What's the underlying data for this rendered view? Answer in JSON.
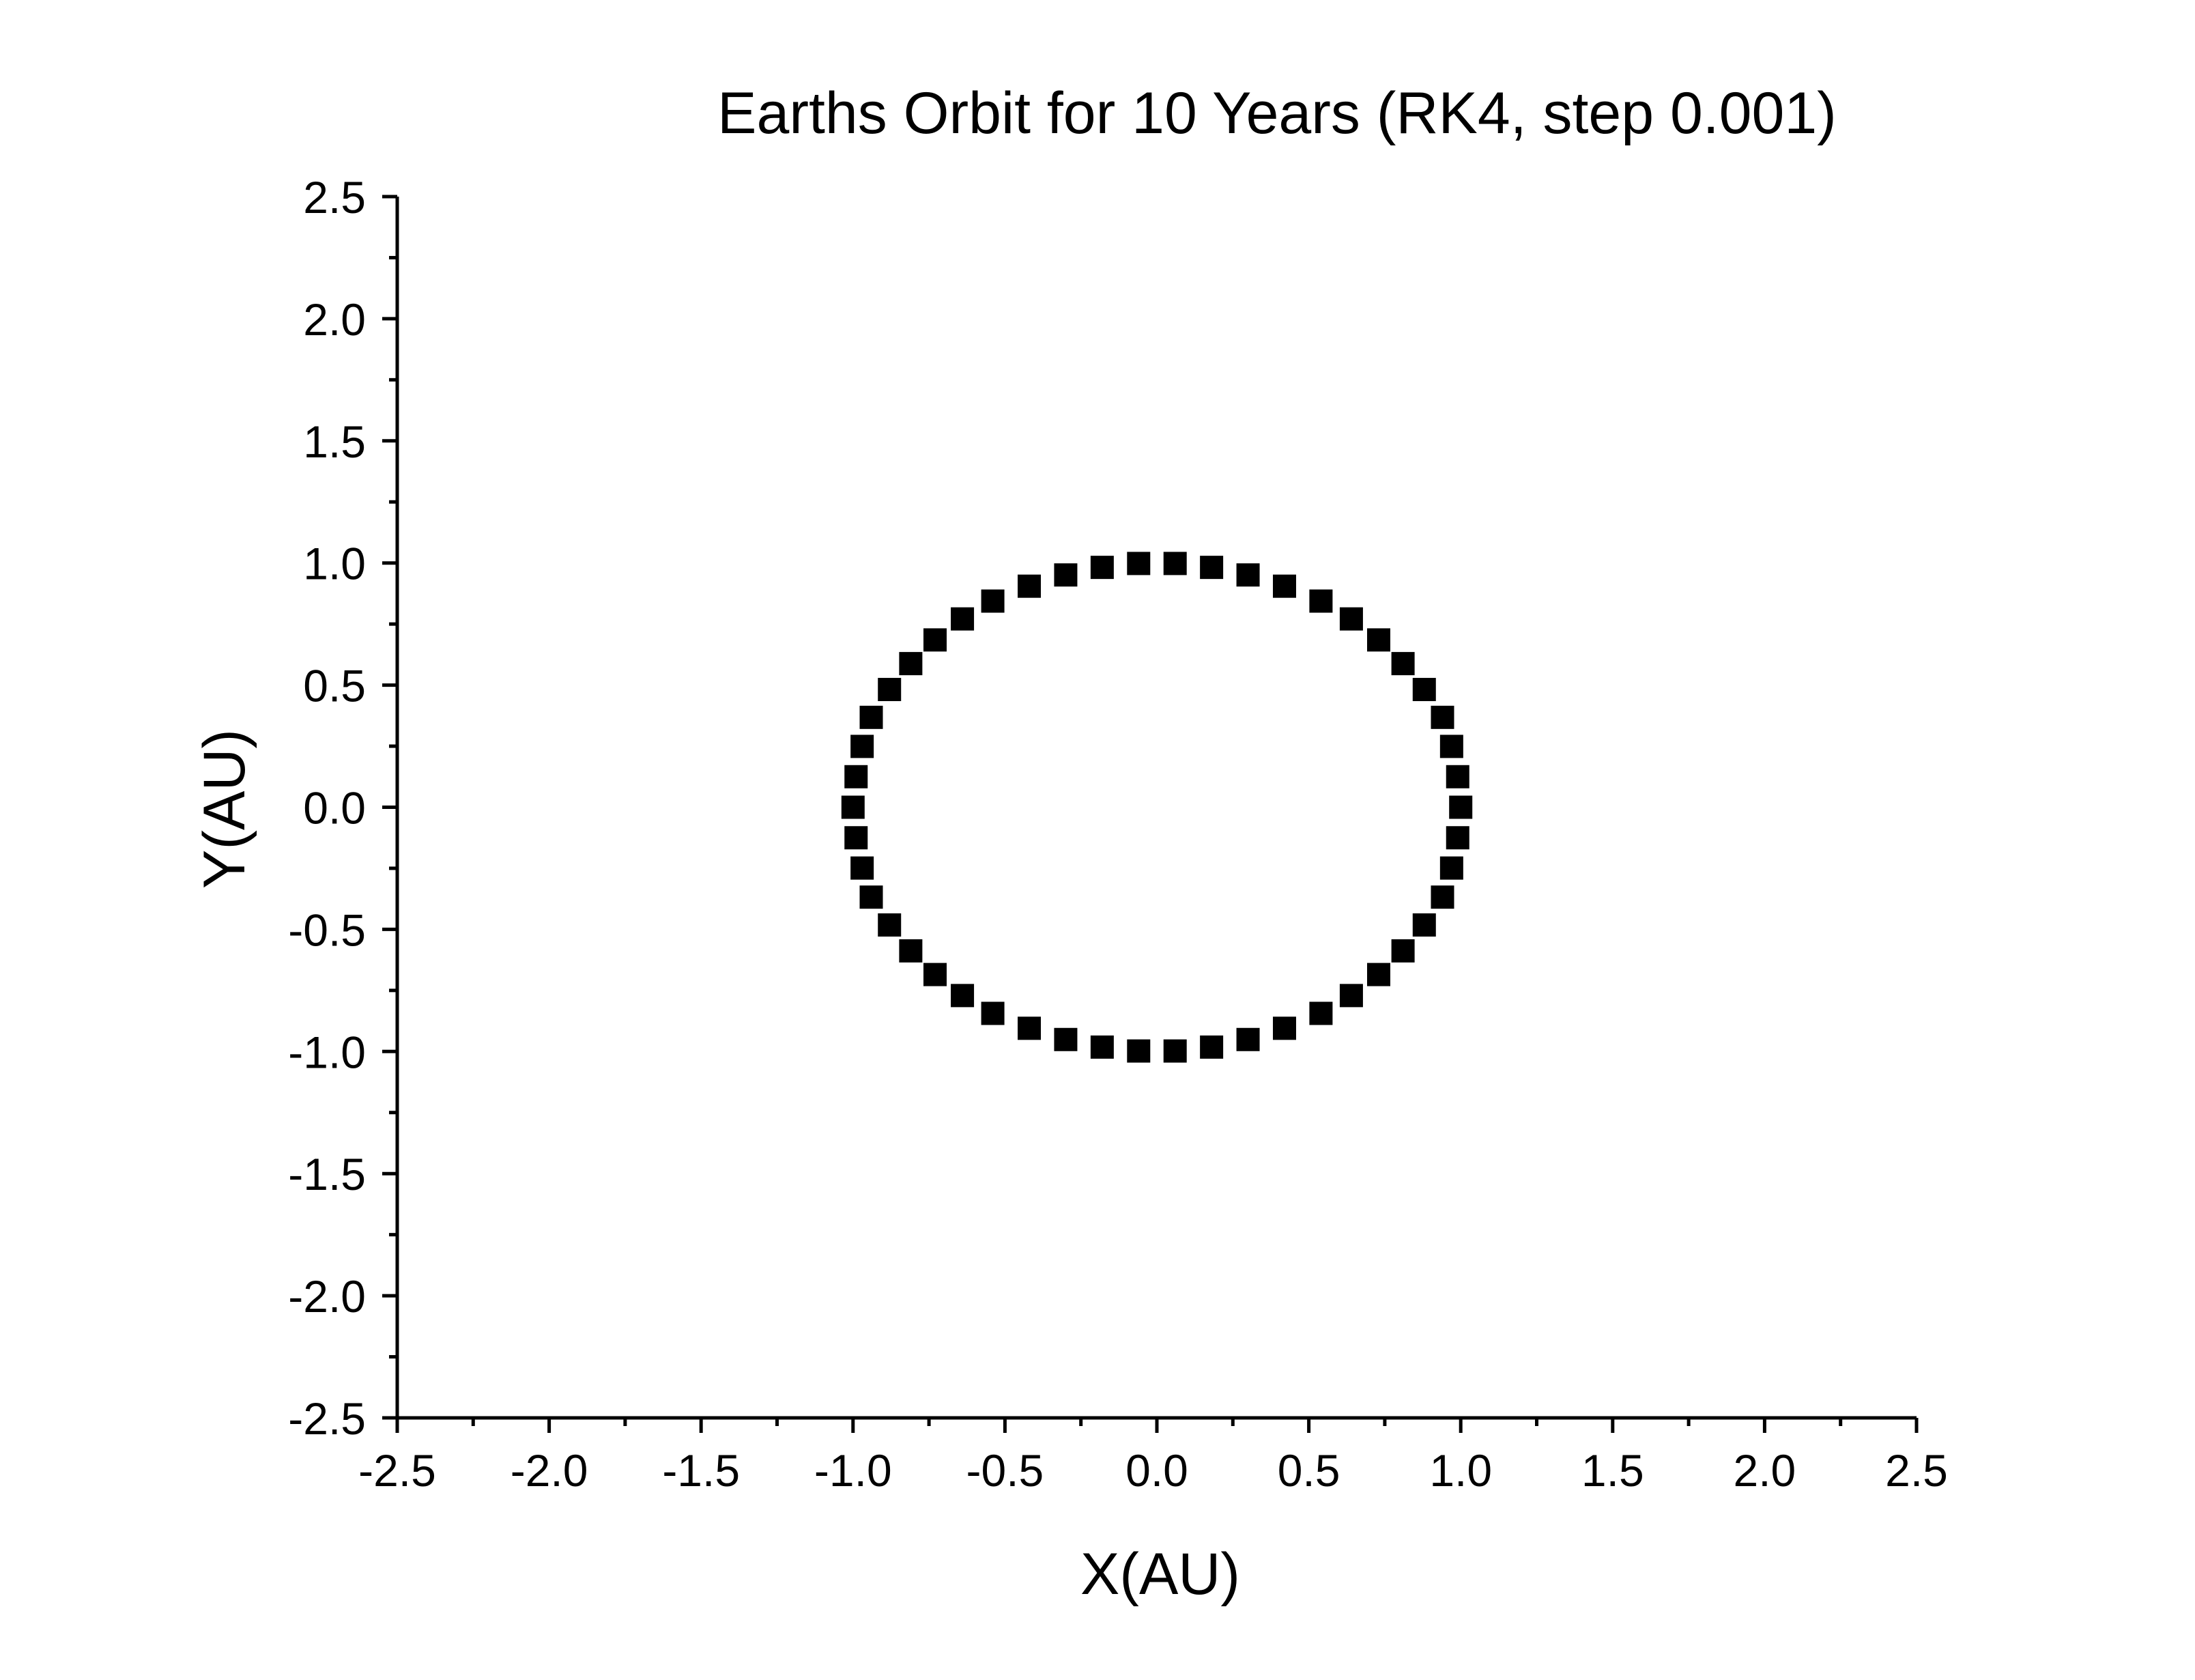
{
  "chart_data": {
    "type": "scatter",
    "title": "Earths Orbit for 10 Years (RK4, step 0.001)",
    "xlabel": "X(AU)",
    "ylabel": "Y(AU)",
    "xlim": [
      -2.5,
      2.5
    ],
    "ylim": [
      -2.5,
      2.5
    ],
    "xticks": [
      "-2.5",
      "-2.0",
      "-1.5",
      "-1.0",
      "-0.5",
      "0.0",
      "0.5",
      "1.0",
      "1.5",
      "2.0",
      "2.5"
    ],
    "yticks": [
      "2.5",
      "2.0",
      "1.5",
      "1.0",
      "0.5",
      "0.0",
      "-0.5",
      "-1.0",
      "-1.5",
      "-2.0",
      "-2.5"
    ],
    "xtick_values": [
      -2.5,
      -2.0,
      -1.5,
      -1.0,
      -0.5,
      0.0,
      0.5,
      1.0,
      1.5,
      2.0,
      2.5
    ],
    "ytick_values": [
      2.5,
      2.0,
      1.5,
      1.0,
      0.5,
      0.0,
      -0.5,
      -1.0,
      -1.5,
      -2.0,
      -2.5
    ],
    "grid": false,
    "marker": "square",
    "marker_color": "#000000",
    "series": [
      {
        "points": [
          [
            1.0,
            0.0
          ],
          [
            0.99,
            0.125
          ],
          [
            0.97,
            0.249
          ],
          [
            0.94,
            0.368
          ],
          [
            0.88,
            0.482
          ],
          [
            0.81,
            0.588
          ],
          [
            0.73,
            0.685
          ],
          [
            0.64,
            0.771
          ],
          [
            0.54,
            0.844
          ],
          [
            0.42,
            0.905
          ],
          [
            0.3,
            0.951
          ],
          [
            0.18,
            0.982
          ],
          [
            0.06,
            0.998
          ],
          [
            -0.06,
            0.998
          ],
          [
            -0.18,
            0.982
          ],
          [
            -0.3,
            0.951
          ],
          [
            -0.42,
            0.905
          ],
          [
            -0.54,
            0.844
          ],
          [
            -0.64,
            0.771
          ],
          [
            -0.73,
            0.685
          ],
          [
            -0.81,
            0.588
          ],
          [
            -0.88,
            0.482
          ],
          [
            -0.94,
            0.368
          ],
          [
            -0.97,
            0.249
          ],
          [
            -0.99,
            0.125
          ],
          [
            -1.0,
            0.0
          ],
          [
            -0.99,
            -0.125
          ],
          [
            -0.97,
            -0.249
          ],
          [
            -0.94,
            -0.368
          ],
          [
            -0.88,
            -0.482
          ],
          [
            -0.81,
            -0.588
          ],
          [
            -0.73,
            -0.685
          ],
          [
            -0.64,
            -0.771
          ],
          [
            -0.54,
            -0.844
          ],
          [
            -0.42,
            -0.905
          ],
          [
            -0.3,
            -0.951
          ],
          [
            -0.18,
            -0.982
          ],
          [
            -0.06,
            -0.998
          ],
          [
            0.06,
            -0.998
          ],
          [
            0.18,
            -0.982
          ],
          [
            0.3,
            -0.951
          ],
          [
            0.42,
            -0.905
          ],
          [
            0.54,
            -0.844
          ],
          [
            0.64,
            -0.771
          ],
          [
            0.73,
            -0.685
          ],
          [
            0.81,
            -0.588
          ],
          [
            0.88,
            -0.482
          ],
          [
            0.94,
            -0.368
          ],
          [
            0.97,
            -0.249
          ],
          [
            0.99,
            -0.125
          ]
        ]
      }
    ]
  }
}
